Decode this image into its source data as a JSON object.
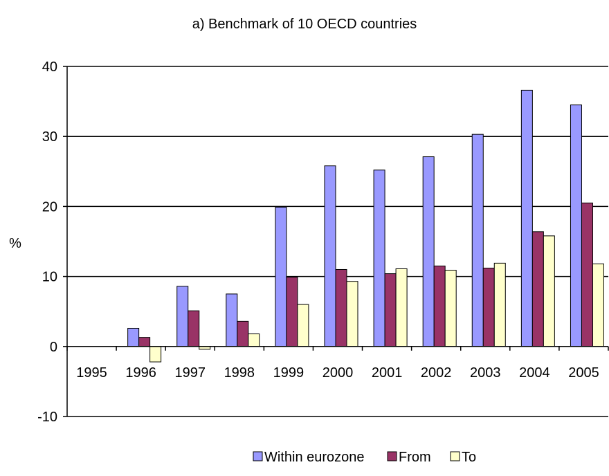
{
  "chart_data": {
    "type": "bar",
    "title": "a)  Benchmark of 10 OECD countries",
    "ylabel": "%",
    "xlabel": "",
    "ylim": [
      -10,
      40
    ],
    "yticks": [
      -10,
      0,
      10,
      20,
      30,
      40
    ],
    "grid": true,
    "legend_position": "bottom",
    "categories": [
      "1995",
      "1996",
      "1997",
      "1998",
      "1999",
      "2000",
      "2001",
      "2002",
      "2003",
      "2004",
      "2005"
    ],
    "series": [
      {
        "name": "Within eurozone",
        "color": "#9999FF",
        "values": [
          0,
          2.6,
          8.6,
          7.5,
          19.9,
          25.8,
          25.2,
          27.1,
          30.3,
          36.6,
          34.5
        ]
      },
      {
        "name": "From",
        "color": "#993366",
        "values": [
          0,
          1.3,
          5.1,
          3.6,
          9.9,
          11.0,
          10.4,
          11.5,
          11.2,
          16.4,
          20.5
        ]
      },
      {
        "name": "To",
        "color": "#FFFFCC",
        "values": [
          0,
          -2.2,
          -0.4,
          1.8,
          6.0,
          9.3,
          11.1,
          10.9,
          11.9,
          15.8,
          11.8
        ]
      }
    ]
  }
}
